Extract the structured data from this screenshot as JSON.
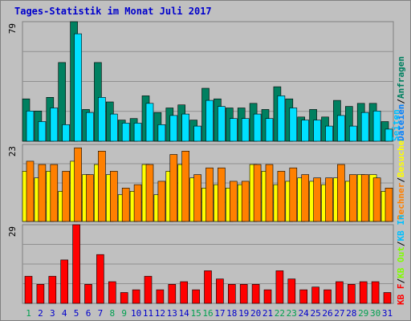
{
  "chart_data": {
    "type": "bar",
    "title": "Tages-Statistik im Monat Juli 2017",
    "categories": [
      "1",
      "2",
      "3",
      "4",
      "5",
      "6",
      "7",
      "8",
      "9",
      "10",
      "11",
      "12",
      "13",
      "14",
      "15",
      "16",
      "17",
      "18",
      "19",
      "20",
      "21",
      "22",
      "23",
      "24",
      "25",
      "26",
      "27",
      "28",
      "29",
      "30",
      "31"
    ],
    "grid": true,
    "colors": {
      "background": "#C0C0C0",
      "plot_border": "#808080",
      "title": "#0000CC",
      "weekday_label": "#0000CC",
      "weekend_label": "#00A050",
      "anfragen": "#008060",
      "dateien": "#00E0FF",
      "seiten": "#0080FF",
      "besuche": "#FFFF00",
      "rechner": "#FF8000",
      "kb_out": "#80FF00",
      "kb_in": "#00C0FF",
      "kb_f": "#FF0000"
    },
    "weekend_days": [
      1,
      8,
      9,
      15,
      16,
      22,
      23,
      29,
      30
    ],
    "legend": {
      "label_anfragen": "Anfragen",
      "sep1": "/",
      "label_dateien": "Dateien",
      "sep2": "/",
      "label_seiten": "Seiten",
      "label_rechner": "Rechner",
      "sep3": "/",
      "label_besuche": "Besuche",
      "sep4": "/",
      "label_kb_in": "KB In",
      "sep5": "/",
      "label_kb_out": "KB Out",
      "label_kb_f": "KB F"
    },
    "panels": [
      {
        "id": "requests",
        "max_label": "79",
        "ylim": [
          0,
          79
        ],
        "series": [
          {
            "key": "anfragen",
            "name": "Anfragen",
            "values": [
              28,
              20,
              29,
              52,
              79,
              21,
              52,
              26,
              14,
              15,
              30,
              19,
              22,
              24,
              14,
              35,
              28,
              22,
              22,
              25,
              21,
              36,
              28,
              16,
              21,
              16,
              27,
              23,
              25,
              25,
              13
            ]
          },
          {
            "key": "dateien",
            "name": "Dateien",
            "values": [
              20,
              13,
              22,
              11,
              71,
              19,
              29,
              18,
              12,
              12,
              25,
              11,
              17,
              18,
              10,
              27,
              23,
              15,
              15,
              18,
              15,
              30,
              22,
              14,
              14,
              10,
              17,
              10,
              19,
              20,
              8
            ]
          }
        ]
      },
      {
        "id": "visits",
        "max_label": "23",
        "ylim": [
          0,
          23
        ],
        "series": [
          {
            "key": "besuche",
            "name": "Besuche",
            "values": [
              15,
              13,
              15,
              9,
              18,
              14,
              17,
              14,
              8,
              9,
              17,
              8,
              15,
              17,
              13,
              10,
              11,
              10,
              11,
              17,
              15,
              11,
              12,
              13,
              12,
              11,
              13,
              12,
              14,
              14,
              9
            ]
          },
          {
            "key": "rechner",
            "name": "Rechner",
            "values": [
              18,
              17,
              17,
              15,
              22,
              14,
              21,
              15,
              10,
              11,
              17,
              12,
              20,
              21,
              14,
              16,
              16,
              12,
              12,
              17,
              17,
              15,
              16,
              14,
              13,
              13,
              17,
              14,
              14,
              13,
              10
            ]
          }
        ]
      },
      {
        "id": "kbytes",
        "max_label": "29",
        "ylim": [
          0,
          29
        ],
        "series": [
          {
            "key": "kb_f",
            "name": "KB F",
            "values": [
              10,
              7,
              10,
              16,
              29,
              7,
              18,
              8,
              4,
              5,
              10,
              5,
              7,
              8,
              5,
              12,
              9,
              7,
              7,
              7,
              5,
              12,
              9,
              5,
              6,
              5,
              8,
              7,
              8,
              8,
              4
            ]
          }
        ]
      }
    ]
  }
}
